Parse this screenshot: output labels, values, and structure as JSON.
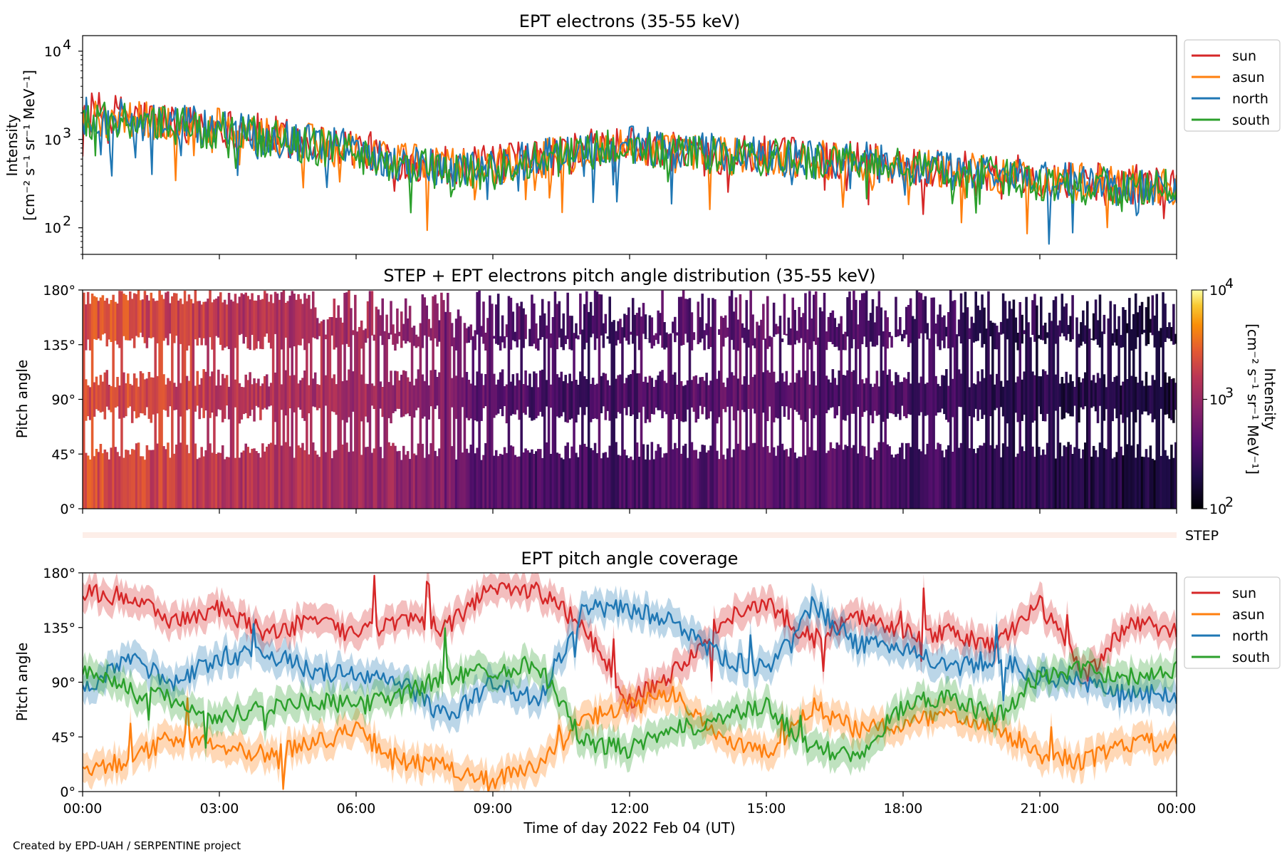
{
  "chart_data": [
    {
      "type": "line",
      "title": "EPT electrons (35-55 keV)",
      "ylabel_line1": "Intensity",
      "ylabel_line2": "[cm⁻² s⁻¹ sr⁻¹ MeV⁻¹]",
      "y_scale": "log",
      "ylim": [
        50,
        15000
      ],
      "xlim_hours": [
        0,
        24
      ],
      "grid": false,
      "legend_position": "outside-right",
      "yticks": [
        {
          "value": 100,
          "base": "10",
          "exp": "2"
        },
        {
          "value": 1000,
          "base": "10",
          "exp": "3"
        },
        {
          "value": 10000,
          "base": "10",
          "exp": "4"
        }
      ],
      "series": [
        {
          "name": "sun",
          "color": "#d62728",
          "x_hours": [
            0,
            0.5,
            1,
            1.5,
            2,
            3,
            4,
            5,
            6,
            7,
            8,
            9,
            10,
            11,
            12,
            13,
            14,
            15,
            16,
            17,
            18,
            19,
            20,
            21,
            22,
            23,
            24
          ],
          "values": [
            2100,
            2000,
            1900,
            1700,
            1550,
            1400,
            1150,
            950,
            800,
            580,
            520,
            510,
            600,
            780,
            850,
            720,
            680,
            650,
            620,
            580,
            520,
            470,
            420,
            380,
            340,
            310,
            300
          ]
        },
        {
          "name": "asun",
          "color": "#ff7f0e",
          "x_hours": [
            0,
            0.5,
            1,
            1.5,
            2,
            3,
            4,
            5,
            6,
            7,
            8,
            9,
            10,
            11,
            12,
            13,
            14,
            15,
            16,
            17,
            18,
            19,
            20,
            21,
            22,
            23,
            24
          ],
          "values": [
            1800,
            1750,
            1700,
            1600,
            1500,
            1350,
            1100,
            900,
            760,
            560,
            500,
            490,
            580,
            760,
            820,
            700,
            660,
            630,
            600,
            560,
            500,
            450,
            400,
            360,
            330,
            300,
            290
          ]
        },
        {
          "name": "north",
          "color": "#1f77b4",
          "x_hours": [
            0,
            0.5,
            1,
            1.5,
            2,
            3,
            4,
            5,
            6,
            7,
            8,
            9,
            10,
            11,
            12,
            13,
            14,
            15,
            16,
            17,
            18,
            19,
            20,
            21,
            22,
            23,
            24
          ],
          "values": [
            1900,
            1800,
            1750,
            1600,
            1500,
            1350,
            1100,
            900,
            760,
            540,
            480,
            470,
            600,
            820,
            880,
            740,
            690,
            650,
            610,
            570,
            500,
            450,
            400,
            360,
            320,
            290,
            280
          ]
        },
        {
          "name": "south",
          "color": "#2ca02c",
          "x_hours": [
            0,
            0.5,
            1,
            1.5,
            2,
            3,
            4,
            5,
            6,
            7,
            8,
            9,
            10,
            11,
            12,
            13,
            14,
            15,
            16,
            17,
            18,
            19,
            20,
            21,
            22,
            23,
            24
          ],
          "values": [
            1700,
            1650,
            1550,
            1450,
            1400,
            1250,
            1050,
            850,
            700,
            500,
            450,
            440,
            560,
            740,
            800,
            680,
            640,
            610,
            580,
            540,
            480,
            430,
            380,
            340,
            300,
            280,
            270
          ]
        }
      ]
    },
    {
      "type": "heatmap",
      "title": "STEP + EPT electrons pitch angle distribution (35-55 keV)",
      "ylabel": "Pitch angle",
      "ylim_deg": [
        0,
        180
      ],
      "xlim_hours": [
        0,
        24
      ],
      "yticks_deg": [
        0,
        45,
        90,
        135,
        180
      ],
      "ytick_labels": [
        "0°",
        "45°",
        "90°",
        "135°",
        "180°"
      ],
      "colorbar": {
        "label": "Intensity",
        "unit": "[cm⁻² s⁻¹ sr⁻¹ MeV⁻¹]",
        "scale": "log",
        "range": [
          100,
          10000
        ],
        "colormap": "inferno",
        "ticks": [
          {
            "value": 100,
            "base": "10",
            "exp": "2"
          },
          {
            "value": 1000,
            "base": "10",
            "exp": "3"
          },
          {
            "value": 10000,
            "base": "10",
            "exp": "4"
          }
        ]
      },
      "intensity_hourly": [
        2300,
        2000,
        1700,
        1400,
        1300,
        1200,
        1100,
        800,
        450,
        380,
        330,
        320,
        360,
        420,
        460,
        400,
        370,
        340,
        300,
        260,
        230,
        210,
        190,
        180
      ]
    },
    {
      "type": "line",
      "title": "EPT pitch angle coverage",
      "ylabel": "Pitch angle",
      "xlabel": "Time of day 2022 Feb 04 (UT)",
      "ylim_deg": [
        0,
        180
      ],
      "xlim_hours": [
        0,
        24
      ],
      "yticks_deg": [
        0,
        45,
        90,
        135,
        180
      ],
      "ytick_labels": [
        "0°",
        "45°",
        "90°",
        "135°",
        "180°"
      ],
      "xticks_hours": [
        0,
        3,
        6,
        9,
        12,
        15,
        18,
        21,
        24
      ],
      "xtick_labels": [
        "00:00",
        "03:00",
        "06:00",
        "09:00",
        "12:00",
        "15:00",
        "18:00",
        "21:00",
        "00:00"
      ],
      "legend_position": "outside-right",
      "grid": false,
      "series": [
        {
          "name": "sun",
          "color": "#d62728",
          "x_hours": [
            0,
            1,
            2,
            3,
            4,
            5,
            6,
            7,
            8,
            9,
            10,
            11,
            12,
            13,
            14,
            15,
            16,
            17,
            18,
            19,
            20,
            21,
            22,
            23,
            24
          ],
          "values": [
            165,
            160,
            140,
            150,
            130,
            140,
            130,
            140,
            135,
            170,
            165,
            135,
            75,
            100,
            140,
            155,
            125,
            145,
            130,
            130,
            120,
            155,
            95,
            140,
            130
          ]
        },
        {
          "name": "asun",
          "color": "#ff7f0e",
          "x_hours": [
            0,
            1,
            2,
            3,
            4,
            5,
            6,
            7,
            8,
            9,
            10,
            11,
            12,
            13,
            14,
            15,
            16,
            17,
            18,
            19,
            20,
            21,
            22,
            23,
            24
          ],
          "values": [
            20,
            25,
            45,
            40,
            30,
            40,
            50,
            25,
            20,
            10,
            20,
            60,
            70,
            80,
            45,
            30,
            70,
            50,
            55,
            65,
            55,
            30,
            25,
            40,
            40
          ]
        },
        {
          "name": "north",
          "color": "#1f77b4",
          "x_hours": [
            0,
            1,
            2,
            3,
            4,
            5,
            6,
            7,
            8,
            9,
            10,
            11,
            12,
            13,
            14,
            15,
            16,
            17,
            18,
            19,
            20,
            21,
            22,
            23,
            24
          ],
          "values": [
            80,
            110,
            90,
            110,
            115,
            100,
            95,
            90,
            60,
            90,
            75,
            150,
            150,
            140,
            110,
            100,
            155,
            120,
            120,
            100,
            110,
            95,
            90,
            80,
            80
          ]
        },
        {
          "name": "south",
          "color": "#2ca02c",
          "x_hours": [
            0,
            1,
            2,
            3,
            4,
            5,
            6,
            7,
            8,
            9,
            10,
            11,
            12,
            13,
            14,
            15,
            16,
            17,
            18,
            19,
            20,
            21,
            22,
            23,
            24
          ],
          "values": [
            100,
            85,
            75,
            60,
            70,
            75,
            70,
            80,
            95,
            100,
            105,
            40,
            35,
            50,
            60,
            70,
            35,
            30,
            70,
            80,
            60,
            95,
            100,
            95,
            100
          ]
        }
      ]
    }
  ],
  "step_strip_label": "STEP",
  "credit": "Created by EPD-UAH / SERPENTINE project"
}
